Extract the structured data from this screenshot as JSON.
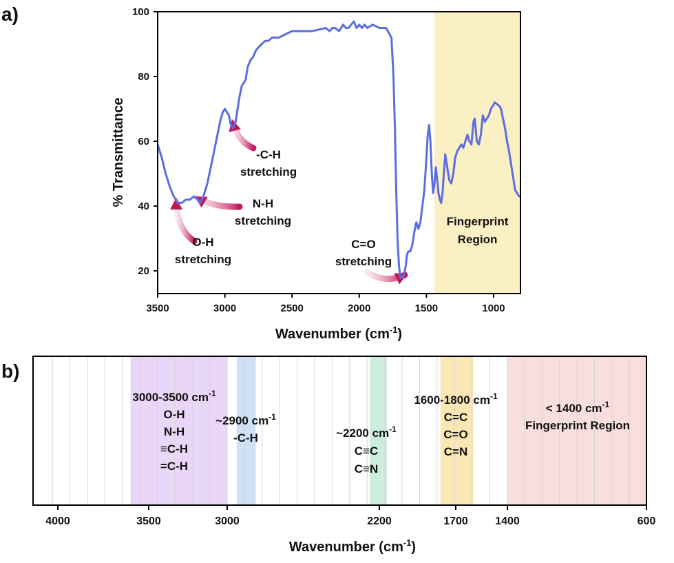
{
  "chart_data": [
    {
      "panel_label": "a)",
      "type": "line",
      "xlabel": "Wavenumber (cm",
      "xlabel_sup": "-1",
      "xlabel_close": ")",
      "ylabel": "% Transmittance",
      "xlim": [
        3500,
        800
      ],
      "ylim": [
        13,
        100
      ],
      "x_ticks": [
        3500,
        3000,
        2500,
        2000,
        1500,
        1000
      ],
      "y_ticks": [
        20,
        40,
        60,
        80,
        100
      ],
      "line_color": "#5b6ee1",
      "highlight": {
        "label_lines": [
          "Fingerprint",
          "Region"
        ],
        "range": [
          1440,
          800
        ],
        "color": "#fbefc4"
      },
      "series": [
        {
          "x": [
            3500,
            3470,
            3440,
            3410,
            3380,
            3350,
            3320,
            3290,
            3260,
            3230,
            3200,
            3185,
            3160,
            3130,
            3100,
            3075,
            3050,
            3030,
            3015,
            3000,
            2985,
            2970,
            2955,
            2940,
            2930,
            2920,
            2905,
            2890,
            2875,
            2860,
            2845,
            2830,
            2810,
            2790,
            2770,
            2750,
            2725,
            2700,
            2675,
            2650,
            2600,
            2550,
            2500,
            2450,
            2400,
            2350,
            2300,
            2250,
            2220,
            2200,
            2180,
            2150,
            2120,
            2100,
            2080,
            2060,
            2040,
            2020,
            2000,
            1980,
            1960,
            1940,
            1900,
            1850,
            1800,
            1760,
            1745,
            1735,
            1725,
            1715,
            1705,
            1695,
            1685,
            1675,
            1668,
            1660,
            1652,
            1645,
            1635,
            1620,
            1605,
            1590,
            1575,
            1560,
            1545,
            1530,
            1515,
            1500,
            1490,
            1480,
            1470,
            1460,
            1450,
            1440,
            1430,
            1420,
            1410,
            1400,
            1390,
            1380,
            1370,
            1360,
            1345,
            1330,
            1315,
            1300,
            1285,
            1270,
            1255,
            1240,
            1225,
            1210,
            1195,
            1180,
            1165,
            1150,
            1140,
            1125,
            1110,
            1095,
            1080,
            1065,
            1050,
            1035,
            1020,
            1005,
            990,
            975,
            960,
            945,
            930,
            915,
            900,
            885,
            870,
            855,
            840,
            825,
            810,
            800
          ],
          "y": [
            59,
            55,
            50,
            46,
            43,
            41,
            41,
            42,
            42,
            43,
            42,
            41,
            43,
            47,
            53,
            58,
            63,
            67,
            69,
            70,
            69,
            68,
            65,
            64,
            65,
            66,
            70,
            74,
            77,
            78,
            79,
            83,
            85,
            86,
            88,
            89,
            90,
            91,
            91,
            92,
            92,
            93,
            94,
            94,
            94,
            94,
            94.5,
            95,
            94,
            95,
            95,
            94,
            96,
            95,
            95,
            96,
            97,
            95,
            96,
            95,
            96,
            95,
            96,
            95,
            95,
            92,
            80,
            65,
            45,
            30,
            22,
            18,
            18,
            18,
            19,
            20,
            22,
            25,
            26,
            26,
            28,
            32,
            35,
            33,
            35,
            40,
            45,
            55,
            62,
            65,
            60,
            50,
            44,
            47,
            52,
            48,
            44,
            42,
            41,
            44,
            50,
            56,
            52,
            48,
            47,
            50,
            55,
            57,
            58,
            59,
            58,
            60,
            62,
            60,
            59,
            66,
            67,
            60,
            59,
            62,
            68,
            66,
            67,
            68,
            70,
            71,
            72,
            71.5,
            71,
            70,
            67,
            64,
            60,
            57,
            53,
            49,
            45,
            44,
            43,
            43
          ]
        }
      ],
      "annotations": [
        {
          "lines": [
            "O-H",
            "stretching"
          ]
        },
        {
          "lines": [
            "N-H",
            "stretching"
          ]
        },
        {
          "lines": [
            "-C-H",
            "stretching"
          ]
        },
        {
          "lines": [
            "C=O",
            "stretching"
          ]
        }
      ]
    },
    {
      "panel_label": "b)",
      "type": "band_chart",
      "xlabel": "Wavenumber (cm",
      "xlabel_sup": "-1",
      "xlabel_close": ")",
      "x_tick_labels": [
        "4000",
        "3500",
        "3000",
        "2200",
        "1700",
        "1400",
        "600"
      ],
      "bands": [
        {
          "from": 3600,
          "to": 3000,
          "color": "#ead6f7",
          "lines": [
            [
              "3000-3500 cm",
              "-1"
            ],
            [
              "O-H",
              ""
            ],
            [
              "N-H",
              ""
            ],
            [
              "≡C-H",
              ""
            ],
            [
              "=C-H",
              ""
            ]
          ]
        },
        {
          "from": 2950,
          "to": 2850,
          "color": "#cfe2f5",
          "lines": [
            [
              "~2900 cm",
              "-1"
            ],
            [
              "-C-H",
              ""
            ]
          ]
        },
        {
          "from": 2250,
          "to": 2150,
          "color": "#cdeedd",
          "lines": [
            [
              "~2200 cm",
              "-1"
            ],
            [
              "C≡C",
              ""
            ],
            [
              "C≡N",
              ""
            ]
          ]
        },
        {
          "from": 1800,
          "to": 1600,
          "color": "#fce7b4",
          "lines": [
            [
              "1600-1800 cm",
              "-1"
            ],
            [
              "C=C",
              ""
            ],
            [
              "C=O",
              ""
            ],
            [
              "C=N",
              ""
            ]
          ]
        },
        {
          "from": 1400,
          "to": 600,
          "color": "#f9dede",
          "lines": [
            [
              "< 1400 cm",
              "-1"
            ],
            [
              "Fingerprint Region",
              ""
            ]
          ]
        }
      ]
    }
  ]
}
